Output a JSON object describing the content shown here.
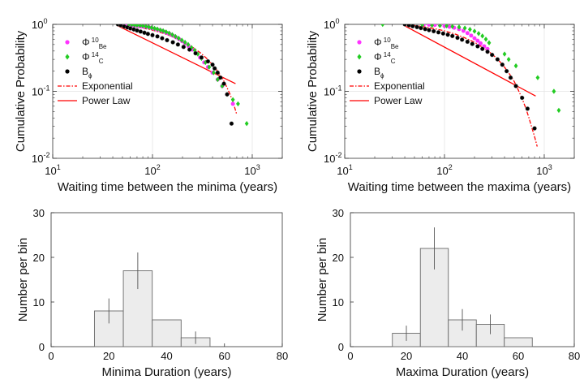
{
  "chart_data": [
    {
      "type": "scatter",
      "panel": "top-left",
      "xscale": "log",
      "yscale": "log",
      "xlabel": "Waiting time between the minima (years)",
      "ylabel": "Cumulative Probability",
      "xlim": [
        10,
        2000
      ],
      "ylim": [
        0.01,
        1
      ],
      "xticks": [
        {
          "v": 10,
          "base": "10",
          "exp": "1"
        },
        {
          "v": 100,
          "base": "10",
          "exp": "2"
        },
        {
          "v": 1000,
          "base": "10",
          "exp": "3"
        }
      ],
      "yticks": [
        {
          "v": 0.01,
          "base": "10",
          "exp": "-2"
        },
        {
          "v": 0.1,
          "base": "10",
          "exp": "-1"
        },
        {
          "v": 1,
          "base": "10",
          "exp": "0"
        }
      ],
      "legend": {
        "position": "top-left",
        "entries": [
          {
            "key": "phi10be",
            "sym": "Φ",
            "sup": "10",
            "sub": "Be",
            "color": "#ff33ff",
            "marker": "circle"
          },
          {
            "key": "phi14c",
            "sym": "Φ",
            "sup": "14",
            "sub": "C",
            "color": "#22cc22",
            "marker": "diamond"
          },
          {
            "key": "bphi",
            "sym": "B",
            "sup": "",
            "sub": "ϕ",
            "color": "#000000",
            "marker": "circle"
          },
          {
            "key": "exp",
            "label": "Exponential",
            "color": "#ff0000",
            "line": "dashdot"
          },
          {
            "key": "pow",
            "label": "Power Law",
            "color": "#ff0000",
            "line": "solid"
          }
        ]
      },
      "series": [
        {
          "name": "Φ10Be",
          "color": "#ff33ff",
          "marker": "circle",
          "x": [
            52,
            56,
            60,
            63,
            66,
            70,
            74,
            78,
            83,
            88,
            93,
            98,
            104,
            110,
            117,
            124,
            132,
            140,
            150,
            160,
            172,
            185,
            198,
            212,
            230,
            250,
            275,
            300,
            330,
            360,
            400,
            450,
            500,
            560,
            640
          ],
          "y": [
            1.0,
            0.99,
            0.98,
            0.97,
            0.96,
            0.95,
            0.94,
            0.93,
            0.92,
            0.91,
            0.9,
            0.88,
            0.86,
            0.84,
            0.82,
            0.8,
            0.77,
            0.74,
            0.71,
            0.68,
            0.64,
            0.6,
            0.56,
            0.52,
            0.47,
            0.42,
            0.37,
            0.32,
            0.27,
            0.23,
            0.19,
            0.15,
            0.12,
            0.09,
            0.065
          ]
        },
        {
          "name": "Φ14C",
          "color": "#22cc22",
          "marker": "diamond",
          "x": [
            58,
            62,
            66,
            70,
            75,
            80,
            86,
            92,
            98,
            105,
            112,
            120,
            128,
            137,
            147,
            158,
            170,
            183,
            197,
            212,
            228,
            246,
            265,
            285,
            310,
            340,
            370,
            410,
            450,
            500,
            560,
            640,
            720,
            880
          ],
          "y": [
            1.0,
            0.99,
            0.98,
            0.97,
            0.96,
            0.95,
            0.93,
            0.91,
            0.89,
            0.87,
            0.85,
            0.82,
            0.8,
            0.77,
            0.74,
            0.7,
            0.66,
            0.62,
            0.58,
            0.54,
            0.5,
            0.45,
            0.41,
            0.36,
            0.31,
            0.27,
            0.23,
            0.19,
            0.15,
            0.12,
            0.09,
            0.075,
            0.065,
            0.033
          ]
        },
        {
          "name": "Bϕ",
          "color": "#000000",
          "marker": "circle",
          "x": [
            45,
            48,
            52,
            56,
            60,
            65,
            70,
            76,
            83,
            90,
            100,
            112,
            125,
            140,
            160,
            180,
            205,
            235,
            270,
            310,
            360,
            400,
            420,
            450,
            480,
            520,
            560,
            620
          ],
          "y": [
            1.0,
            0.97,
            0.93,
            0.9,
            0.87,
            0.84,
            0.81,
            0.78,
            0.75,
            0.72,
            0.69,
            0.66,
            0.62,
            0.58,
            0.54,
            0.5,
            0.46,
            0.42,
            0.37,
            0.32,
            0.28,
            0.25,
            0.22,
            0.19,
            0.16,
            0.13,
            0.09,
            0.033
          ]
        },
        {
          "name": "Exponential",
          "color": "#ff0000",
          "line": "dashdot",
          "x": [
            45,
            60,
            80,
            100,
            130,
            160,
            200,
            250,
            300,
            350,
            400,
            450,
            500,
            550,
            600,
            650,
            700
          ],
          "y": [
            1.0,
            0.95,
            0.88,
            0.82,
            0.73,
            0.65,
            0.56,
            0.46,
            0.38,
            0.31,
            0.25,
            0.2,
            0.16,
            0.12,
            0.09,
            0.065,
            0.045
          ]
        },
        {
          "name": "Power Law",
          "color": "#ff0000",
          "line": "solid",
          "x": [
            45,
            680
          ],
          "y": [
            0.95,
            0.13
          ]
        }
      ]
    },
    {
      "type": "scatter",
      "panel": "top-right",
      "xscale": "log",
      "yscale": "log",
      "xlabel": "Waiting time between the maxima (years)",
      "ylabel": "Cumulative Probability",
      "xlim": [
        10,
        2000
      ],
      "ylim": [
        0.01,
        1
      ],
      "xticks": [
        {
          "v": 10,
          "base": "10",
          "exp": "1"
        },
        {
          "v": 100,
          "base": "10",
          "exp": "2"
        },
        {
          "v": 1000,
          "base": "10",
          "exp": "3"
        }
      ],
      "yticks": [
        {
          "v": 0.01,
          "base": "10",
          "exp": "-2"
        },
        {
          "v": 0.1,
          "base": "10",
          "exp": "-1"
        },
        {
          "v": 1,
          "base": "10",
          "exp": "0"
        }
      ],
      "legend": {
        "position": "top-left",
        "entries": [
          {
            "key": "phi10be",
            "sym": "Φ",
            "sup": "10",
            "sub": "Be",
            "color": "#ff33ff",
            "marker": "circle"
          },
          {
            "key": "phi14c",
            "sym": "Φ",
            "sup": "14",
            "sub": "C",
            "color": "#22cc22",
            "marker": "diamond"
          },
          {
            "key": "bphi",
            "sym": "B",
            "sup": "",
            "sub": "ϕ",
            "color": "#000000",
            "marker": "circle"
          },
          {
            "key": "exp",
            "label": "Exponential",
            "color": "#ff0000",
            "line": "dashdot"
          },
          {
            "key": "pow",
            "label": "Power Law",
            "color": "#ff0000",
            "line": "solid"
          }
        ]
      },
      "series": [
        {
          "name": "Φ10Be",
          "color": "#ff33ff",
          "marker": "circle",
          "x": [
            62,
            70,
            80,
            90,
            100,
            112,
            125,
            140,
            155,
            170,
            185,
            200,
            215,
            230,
            250,
            270
          ],
          "y": [
            1.0,
            0.99,
            0.98,
            0.97,
            0.95,
            0.92,
            0.89,
            0.85,
            0.8,
            0.74,
            0.68,
            0.62,
            0.57,
            0.52,
            0.47,
            0.43
          ]
        },
        {
          "name": "Φ14C",
          "color": "#22cc22",
          "marker": "diamond",
          "x": [
            24,
            45,
            60,
            75,
            90,
            105,
            120,
            140,
            160,
            180,
            200,
            220,
            240,
            260,
            280,
            400,
            440,
            520,
            860,
            1250,
            1400
          ],
          "y": [
            1.0,
            0.99,
            0.98,
            0.97,
            0.96,
            0.95,
            0.93,
            0.91,
            0.88,
            0.84,
            0.79,
            0.73,
            0.67,
            0.6,
            0.53,
            0.36,
            0.3,
            0.24,
            0.16,
            0.1,
            0.052
          ]
        },
        {
          "name": "Bϕ",
          "color": "#000000",
          "marker": "circle",
          "x": [
            40,
            44,
            48,
            53,
            58,
            64,
            70,
            78,
            87,
            97,
            108,
            120,
            135,
            150,
            170,
            190,
            215,
            240,
            270,
            300,
            340,
            380,
            420,
            460,
            520,
            600,
            680,
            800
          ],
          "y": [
            1.0,
            0.97,
            0.94,
            0.91,
            0.88,
            0.85,
            0.82,
            0.79,
            0.76,
            0.73,
            0.7,
            0.67,
            0.63,
            0.59,
            0.55,
            0.51,
            0.47,
            0.43,
            0.39,
            0.35,
            0.3,
            0.25,
            0.2,
            0.16,
            0.12,
            0.08,
            0.055,
            0.028
          ]
        },
        {
          "name": "Exponential",
          "color": "#ff0000",
          "line": "dashdot",
          "x": [
            40,
            60,
            80,
            100,
            130,
            160,
            200,
            250,
            300,
            350,
            400,
            450,
            500,
            550,
            600,
            650,
            700,
            750,
            800,
            850
          ],
          "y": [
            1.0,
            0.93,
            0.86,
            0.8,
            0.71,
            0.63,
            0.54,
            0.44,
            0.36,
            0.29,
            0.23,
            0.18,
            0.14,
            0.105,
            0.078,
            0.057,
            0.041,
            0.029,
            0.021,
            0.015
          ]
        },
        {
          "name": "Power Law",
          "color": "#ff0000",
          "line": "solid",
          "x": [
            40,
            820
          ],
          "y": [
            0.95,
            0.085
          ]
        }
      ]
    },
    {
      "type": "bar",
      "panel": "bottom-left",
      "xlabel": "Minima Duration (years)",
      "ylabel": "Number per bin",
      "xlim": [
        0,
        80
      ],
      "ylim": [
        0,
        30
      ],
      "xticks": [
        0,
        20,
        40,
        60,
        80
      ],
      "yticks": [
        0,
        10,
        20,
        30
      ],
      "bins": [
        {
          "x0": 15,
          "x1": 25,
          "value": 8,
          "err": 2.8
        },
        {
          "x0": 25,
          "x1": 35,
          "value": 17,
          "err": 4.1
        },
        {
          "x0": 35,
          "x1": 45,
          "value": 6,
          "err": 0
        },
        {
          "x0": 45,
          "x1": 55,
          "value": 2,
          "err": 1.4
        }
      ]
    },
    {
      "type": "bar",
      "panel": "bottom-right",
      "xlabel": "Maxima Duration (years)",
      "ylabel": "Number per bin",
      "xlim": [
        0,
        80
      ],
      "ylim": [
        0,
        30
      ],
      "xticks": [
        0,
        20,
        40,
        60,
        80
      ],
      "yticks": [
        0,
        10,
        20,
        30
      ],
      "bins": [
        {
          "x0": 15,
          "x1": 25,
          "value": 3,
          "err": 1.7
        },
        {
          "x0": 25,
          "x1": 35,
          "value": 22,
          "err": 4.7
        },
        {
          "x0": 35,
          "x1": 45,
          "value": 6,
          "err": 2.4
        },
        {
          "x0": 45,
          "x1": 55,
          "value": 5,
          "err": 2.2
        },
        {
          "x0": 55,
          "x1": 65,
          "value": 2,
          "err": 0
        }
      ]
    }
  ]
}
